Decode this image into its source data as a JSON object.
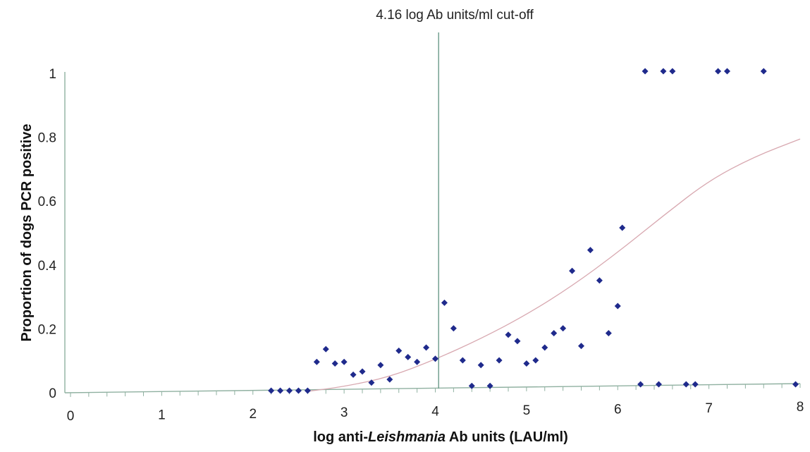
{
  "chart_data": {
    "type": "scatter",
    "title": "",
    "xlabel_prefix": "log anti-",
    "xlabel_italic": "Leishmania",
    "xlabel_suffix": " Ab units (LAU/ml)",
    "ylabel": "Proportion of dogs PCR positive",
    "xlim": [
      0,
      8
    ],
    "ylim": [
      0,
      1
    ],
    "xticks": [
      "0",
      "1",
      "2",
      "3",
      "4",
      "5",
      "6",
      "7",
      "8"
    ],
    "yticks": [
      "0",
      "0.2",
      "0.4",
      "0.6",
      "0.8",
      "1"
    ],
    "grid": false,
    "legend": "none",
    "cutoff": {
      "x": 4.16,
      "label": "4.16 log Ab units/ml cut-off"
    },
    "colors": {
      "points": "#1f2a8c",
      "axes": "#8fb0a0",
      "cutoff_line": "#6a9a88",
      "trend_line": "#d8a8b0"
    },
    "series": [
      {
        "points": [
          [
            2.2,
            0.0
          ],
          [
            2.3,
            0.0
          ],
          [
            2.4,
            0.0
          ],
          [
            2.5,
            0.0
          ],
          [
            2.6,
            0.0
          ],
          [
            2.7,
            0.09
          ],
          [
            2.8,
            0.13
          ],
          [
            2.9,
            0.085
          ],
          [
            3.0,
            0.09
          ],
          [
            3.1,
            0.05
          ],
          [
            3.2,
            0.06
          ],
          [
            3.3,
            0.025
          ],
          [
            3.4,
            0.08
          ],
          [
            3.5,
            0.035
          ],
          [
            3.6,
            0.125
          ],
          [
            3.7,
            0.105
          ],
          [
            3.8,
            0.09
          ],
          [
            3.9,
            0.135
          ],
          [
            4.0,
            0.1
          ],
          [
            4.1,
            0.275
          ],
          [
            4.2,
            0.195
          ],
          [
            4.3,
            0.095
          ],
          [
            4.4,
            0.015
          ],
          [
            4.5,
            0.08
          ],
          [
            4.6,
            0.015
          ],
          [
            4.7,
            0.095
          ],
          [
            4.8,
            0.175
          ],
          [
            4.9,
            0.155
          ],
          [
            5.0,
            0.085
          ],
          [
            5.1,
            0.095
          ],
          [
            5.2,
            0.135
          ],
          [
            5.3,
            0.18
          ],
          [
            5.4,
            0.195
          ],
          [
            5.5,
            0.375
          ],
          [
            5.6,
            0.14
          ],
          [
            5.7,
            0.44
          ],
          [
            5.8,
            0.345
          ],
          [
            5.9,
            0.18
          ],
          [
            6.0,
            0.265
          ],
          [
            6.05,
            0.51
          ],
          [
            6.25,
            0.02
          ],
          [
            6.45,
            0.02
          ],
          [
            6.75,
            0.02
          ],
          [
            6.85,
            0.02
          ],
          [
            7.95,
            0.02
          ],
          [
            6.3,
            1.0
          ],
          [
            6.5,
            1.0
          ],
          [
            6.6,
            1.0
          ],
          [
            7.1,
            1.0
          ],
          [
            7.2,
            1.0
          ],
          [
            7.6,
            1.0
          ]
        ]
      }
    ],
    "trend": [
      [
        2.6,
        0.0
      ],
      [
        3.0,
        0.015
      ],
      [
        3.5,
        0.045
      ],
      [
        4.0,
        0.1
      ],
      [
        4.5,
        0.165
      ],
      [
        5.0,
        0.24
      ],
      [
        5.5,
        0.33
      ],
      [
        6.0,
        0.435
      ],
      [
        6.5,
        0.55
      ],
      [
        7.0,
        0.66
      ],
      [
        7.5,
        0.735
      ],
      [
        8.0,
        0.79
      ]
    ]
  }
}
